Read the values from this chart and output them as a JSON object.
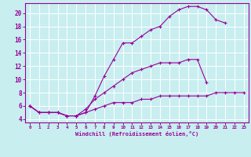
{
  "xlabel": "Windchill (Refroidissement éolien,°C)",
  "bg_color": "#c8eef0",
  "line_color": "#990099",
  "grid_color": "#ffffff",
  "xlim": [
    -0.5,
    23.5
  ],
  "ylim": [
    3.5,
    21.5
  ],
  "xtick_labels": [
    "0",
    "1",
    "2",
    "3",
    "4",
    "5",
    "6",
    "7",
    "8",
    "9",
    "10",
    "11",
    "12",
    "13",
    "14",
    "15",
    "16",
    "17",
    "18",
    "19",
    "20",
    "21",
    "22",
    "23"
  ],
  "yticks": [
    4,
    6,
    8,
    10,
    12,
    14,
    16,
    18,
    20
  ],
  "curve1_x": [
    0,
    1,
    2,
    3,
    4,
    5,
    6,
    7,
    8,
    9,
    10,
    11,
    12,
    13,
    14,
    15,
    16,
    17,
    18,
    19,
    20,
    21
  ],
  "curve1_y": [
    6.0,
    5.0,
    5.0,
    5.0,
    4.5,
    4.5,
    5.0,
    7.5,
    10.5,
    13.0,
    15.5,
    15.5,
    16.5,
    17.5,
    18.0,
    19.5,
    20.5,
    21.0,
    21.0,
    20.5,
    19.0,
    18.5
  ],
  "curve2_x": [
    0,
    1,
    2,
    3,
    4,
    5,
    6,
    7,
    8,
    9,
    10,
    11,
    12,
    13,
    14,
    15,
    16,
    17,
    18,
    19
  ],
  "curve2_y": [
    6.0,
    5.0,
    5.0,
    5.0,
    4.5,
    4.5,
    5.5,
    7.0,
    8.0,
    9.0,
    10.0,
    11.0,
    11.5,
    12.0,
    12.5,
    12.5,
    12.5,
    13.0,
    13.0,
    9.5
  ],
  "curve3_x": [
    0,
    1,
    2,
    3,
    4,
    5,
    6,
    7,
    8,
    9,
    10,
    11,
    12,
    13,
    14,
    15,
    16,
    17,
    18,
    19,
    20,
    21,
    22,
    23
  ],
  "curve3_y": [
    6.0,
    5.0,
    5.0,
    5.0,
    4.5,
    4.5,
    5.0,
    5.5,
    6.0,
    6.5,
    6.5,
    6.5,
    7.0,
    7.0,
    7.5,
    7.5,
    7.5,
    7.5,
    7.5,
    7.5,
    8.0,
    8.0,
    8.0,
    8.0
  ]
}
